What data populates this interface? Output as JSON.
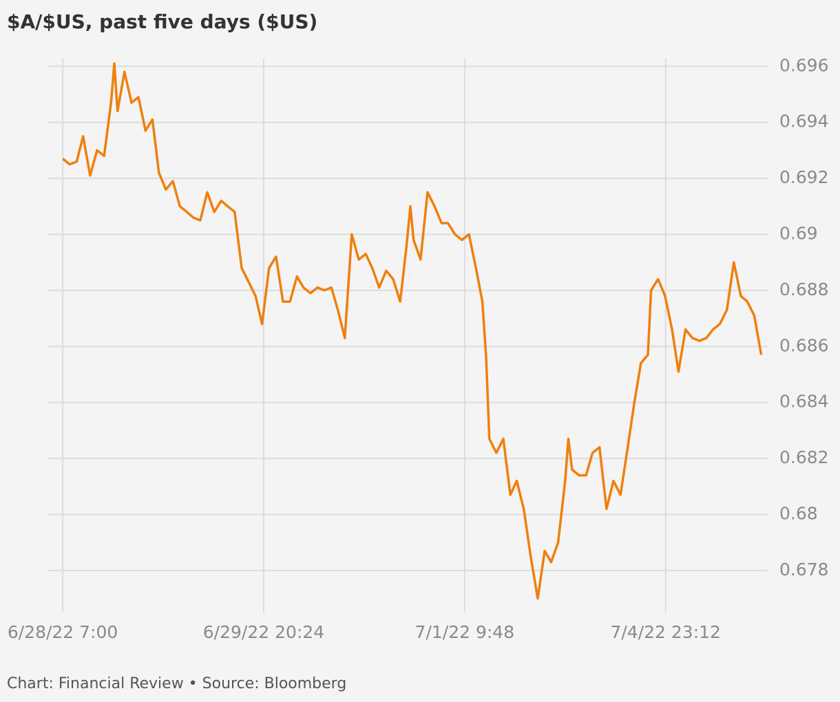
{
  "chart_data": {
    "type": "line",
    "title": "$A/$US, past five days ($US)",
    "source": "Chart: Financial Review • Source: Bloomberg",
    "color": "#f07f0d",
    "grid": true,
    "x": [
      0,
      1.3,
      2.6,
      3.8,
      5.1,
      6.4,
      7.7,
      9.0,
      9.6,
      10.2,
      11.5,
      12.8,
      14.1,
      15.4,
      16.7,
      17.9,
      19.2,
      20.5,
      21.8,
      23.1,
      24.3,
      25.6,
      26.9,
      28.2,
      29.5,
      30.7,
      32.0,
      33.3,
      34.6,
      35.9,
      37.1,
      38.4,
      39.7,
      41.0,
      42.3,
      43.6,
      44.8,
      46.1,
      47.4,
      48.7,
      50.0,
      51.2,
      52.5,
      53.8,
      55.1,
      56.4,
      57.6,
      58.9,
      60.2,
      61.5,
      62.8,
      64.0,
      64.7,
      65.3,
      66.6,
      67.9,
      69.2,
      70.5,
      71.7,
      73.0,
      74.3,
      75.6,
      76.9,
      78.1,
      78.8,
      79.4,
      80.7,
      82.0,
      83.3,
      84.5,
      85.8,
      87.1,
      88.4,
      89.7,
      90.9,
      92.2,
      93.5,
      94.1,
      94.8,
      96.1,
      97.4,
      98.6,
      99.9,
      101.2,
      102.5,
      103.8,
      105.0,
      106.3,
      107.6,
      108.9,
      109.5,
      110.8,
      112.1,
      113.4,
      114.6,
      115.9,
      117.2,
      118.5,
      119.8,
      121.0,
      122.3,
      123.6,
      124.9,
      126.2,
      127.4,
      128.7,
      130.0
    ],
    "values": [
      0.6927,
      0.6925,
      0.6926,
      0.6935,
      0.6921,
      0.693,
      0.6928,
      0.6947,
      0.6961,
      0.6944,
      0.6958,
      0.6947,
      0.6949,
      0.6937,
      0.6941,
      0.6922,
      0.6916,
      0.6919,
      0.691,
      0.6908,
      0.6906,
      0.6905,
      0.6915,
      0.6908,
      0.6912,
      0.691,
      0.6908,
      0.6888,
      0.6883,
      0.6878,
      0.6868,
      0.6888,
      0.6892,
      0.6876,
      0.6876,
      0.6885,
      0.6881,
      0.6879,
      0.6881,
      0.688,
      0.6881,
      0.6873,
      0.6863,
      0.69,
      0.6891,
      0.6893,
      0.6888,
      0.6881,
      0.6887,
      0.6884,
      0.6876,
      0.6896,
      0.691,
      0.6898,
      0.6891,
      0.6915,
      0.691,
      0.6904,
      0.6904,
      0.69,
      0.6898,
      0.69,
      0.6888,
      0.6876,
      0.6856,
      0.6827,
      0.6822,
      0.6827,
      0.6807,
      0.6812,
      0.6802,
      0.6785,
      0.677,
      0.6787,
      0.6783,
      0.679,
      0.6812,
      0.6827,
      0.6816,
      0.6814,
      0.6814,
      0.6822,
      0.6824,
      0.6802,
      0.6812,
      0.6807,
      0.6822,
      0.6839,
      0.6854,
      0.6857,
      0.688,
      0.6884,
      0.6878,
      0.6866,
      0.6851,
      0.6866,
      0.6863,
      0.6862,
      0.6863,
      0.6866,
      0.6868,
      0.6873,
      0.689,
      0.6878,
      0.6876,
      0.6871,
      0.6857
    ],
    "xlim": [
      -2.7,
      131.2
    ],
    "xticks": [
      {
        "value": 0,
        "label": "6/28/22 7:00"
      },
      {
        "value": 37.4,
        "label": "6/29/22 20:24"
      },
      {
        "value": 74.8,
        "label": "7/1/22 9:48"
      },
      {
        "value": 112.2,
        "label": "7/4/22 23:12"
      }
    ],
    "ylim": [
      0.6765,
      0.6964
    ],
    "yticks": [
      0.678,
      0.68,
      0.682,
      0.684,
      0.686,
      0.688,
      0.69,
      0.692,
      0.694,
      0.696
    ]
  }
}
